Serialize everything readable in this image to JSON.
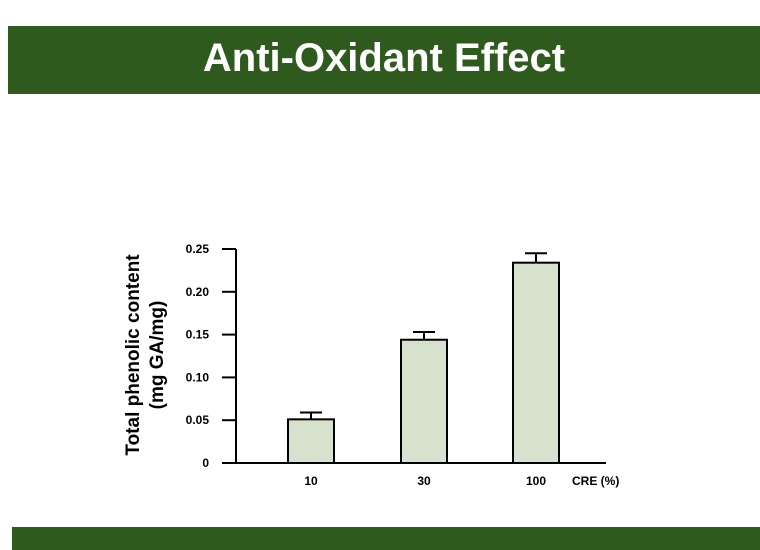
{
  "slide": {
    "title": "Anti-Oxidant Effect",
    "band_color": "#2e5a1e",
    "title_color": "#ffffff"
  },
  "chart_data": {
    "type": "bar",
    "categories": [
      "10",
      "30",
      "100"
    ],
    "values": [
      0.051,
      0.144,
      0.234
    ],
    "errors": [
      0.008,
      0.009,
      0.011
    ],
    "ylim": [
      0,
      0.25
    ],
    "yticks": [
      "0",
      "0.05",
      "0.10",
      "0.15",
      "0.20",
      "0.25"
    ],
    "ylabel_line1": "Total phenolic content",
    "ylabel_line2": "(mg GA/mg)",
    "xlabel": "CRE (%)",
    "bar_color": "#d6e2ce",
    "edge_color": "#000000",
    "grid": false
  }
}
